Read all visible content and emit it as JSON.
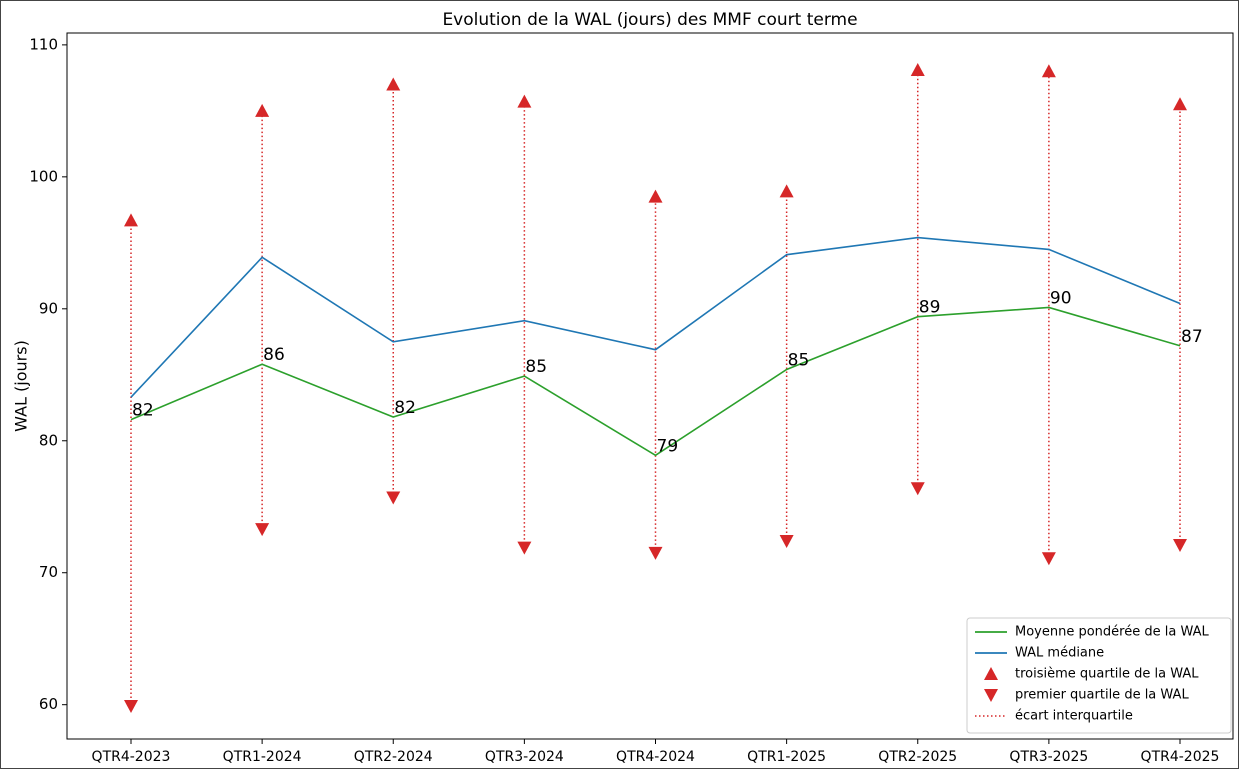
{
  "chart_data": {
    "type": "line",
    "title": "Evolution de la WAL (jours) des MMF court terme",
    "ylabel": "WAL (jours)",
    "categories": [
      "QTR4-2023",
      "QTR1-2024",
      "QTR2-2024",
      "QTR3-2024",
      "QTR4-2024",
      "QTR1-2025",
      "QTR2-2025",
      "QTR3-2025",
      "QTR4-2025"
    ],
    "series": [
      {
        "name": "Moyenne pondérée de la WAL",
        "color": "#2ca02c",
        "values": [
          81.6,
          85.8,
          81.8,
          84.9,
          78.9,
          85.4,
          89.4,
          90.1,
          87.2
        ],
        "value_labels": [
          "82",
          "86",
          "82",
          "85",
          "79",
          "85",
          "89",
          "90",
          "87"
        ]
      },
      {
        "name": "WAL médiane",
        "color": "#1f77b4",
        "values": [
          83.3,
          93.9,
          87.5,
          89.1,
          86.9,
          94.1,
          95.4,
          94.5,
          90.4
        ]
      },
      {
        "name": "troisième quartile de la WAL",
        "color": "#d62728",
        "marker": "^",
        "values": [
          96.7,
          105.0,
          107.0,
          105.7,
          98.5,
          98.9,
          108.1,
          108.0,
          105.5
        ]
      },
      {
        "name": "premier quartile de la WAL",
        "color": "#d62728",
        "marker": "v",
        "values": [
          59.9,
          73.3,
          75.7,
          71.9,
          71.5,
          72.4,
          76.4,
          71.1,
          72.1
        ]
      },
      {
        "name": "écart interquartile",
        "color": "#d62728",
        "linestyle": "dotted"
      }
    ],
    "ylim": [
      57.4,
      110.9
    ],
    "yticks": [
      60,
      70,
      80,
      90,
      100,
      110
    ],
    "grid": false,
    "legend": "lower right"
  }
}
